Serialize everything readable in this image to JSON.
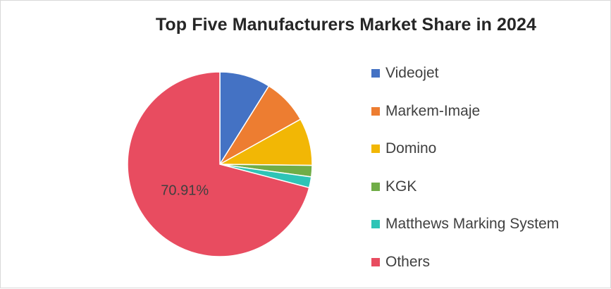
{
  "chart_data": {
    "type": "pie",
    "title": "Top Five Manufacturers Market Share in 2024",
    "slices": [
      {
        "label": "Videojet",
        "value": 8.9,
        "color": "#4472C4"
      },
      {
        "label": "Markem-Imaje",
        "value": 8.0,
        "color": "#ED7D31"
      },
      {
        "label": "Domino",
        "value": 8.3,
        "color": "#F2B705"
      },
      {
        "label": "KGK",
        "value": 2.0,
        "color": "#70AD47"
      },
      {
        "label": "Matthews Marking System",
        "value": 1.89,
        "color": "#2EC4B6"
      },
      {
        "label": "Others",
        "value": 70.91,
        "color": "#E84C60"
      }
    ],
    "data_labels": [
      {
        "slice": "Others",
        "text": "70.91%"
      }
    ],
    "legend_position": "right"
  }
}
